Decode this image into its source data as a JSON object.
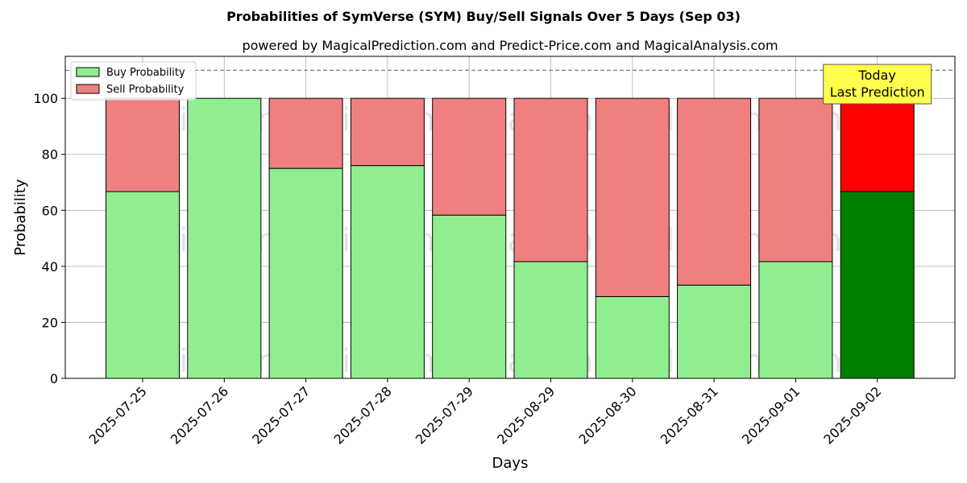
{
  "chart_data": {
    "type": "bar",
    "title": "Probabilities of SymVerse (SYM) Buy/Sell Signals Over 5 Days (Sep 03)",
    "subtitle": "powered by MagicalPrediction.com and Predict-Price.com and MagicalAnalysis.com",
    "xlabel": "Days",
    "ylabel": "Probability",
    "ylim": [
      0,
      115
    ],
    "yticks": [
      0,
      20,
      40,
      60,
      80,
      100
    ],
    "grid": true,
    "legend_position": "top-left",
    "stacked": true,
    "categories": [
      "2025-07-25",
      "2025-07-26",
      "2025-07-27",
      "2025-07-28",
      "2025-07-29",
      "2025-08-29",
      "2025-08-30",
      "2025-08-31",
      "2025-09-01",
      "2025-09-02"
    ],
    "series": [
      {
        "name": "Buy Probability",
        "color": "#90ee90",
        "highlight_color": "#008000",
        "values": [
          66.7,
          100,
          75,
          76,
          58.3,
          41.7,
          29.2,
          33.3,
          41.7,
          66.7
        ]
      },
      {
        "name": "Sell Probability",
        "color": "#f08080",
        "highlight_color": "#ff0000",
        "values": [
          33.3,
          0,
          25,
          24,
          41.7,
          58.3,
          70.8,
          66.7,
          58.3,
          33.3
        ]
      }
    ],
    "reference_line": {
      "y": 110,
      "style": "dashed",
      "color": "#808080"
    },
    "annotation": {
      "lines": [
        "Today",
        "Last Prediction"
      ],
      "category": "2025-09-02",
      "background": "#ffff4d"
    },
    "watermarks": [
      "MagicalAnalysis.com",
      "MagicalPrediction.com"
    ]
  }
}
